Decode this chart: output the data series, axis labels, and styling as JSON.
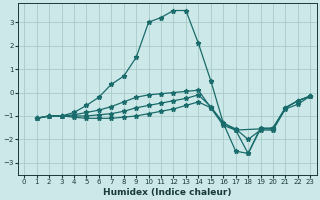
{
  "xlabel": "Humidex (Indice chaleur)",
  "bg_color": "#cce8e8",
  "grid_color": "#aacaca",
  "line_color": "#1a6b6b",
  "xlim": [
    -0.5,
    23.5
  ],
  "ylim": [
    -3.5,
    3.8
  ],
  "yticks": [
    -3,
    -2,
    -1,
    0,
    1,
    2,
    3
  ],
  "xticks": [
    0,
    1,
    2,
    3,
    4,
    5,
    6,
    7,
    8,
    9,
    10,
    11,
    12,
    13,
    14,
    15,
    16,
    17,
    18,
    19,
    20,
    21,
    22,
    23
  ],
  "series": [
    {
      "x": [
        1,
        2,
        3,
        4,
        5,
        6,
        7,
        8,
        9,
        10,
        11,
        12,
        13,
        14,
        15,
        16,
        17,
        18,
        19,
        20,
        21,
        22,
        23
      ],
      "y": [
        -1.1,
        -1.0,
        -1.0,
        -0.85,
        -0.55,
        -0.2,
        0.35,
        0.7,
        1.5,
        3.0,
        3.2,
        3.5,
        3.5,
        2.1,
        0.5,
        -1.3,
        -2.5,
        -2.6,
        -1.5,
        -1.55,
        -0.65,
        -0.35,
        -0.15
      ]
    },
    {
      "x": [
        1,
        2,
        3,
        4,
        5,
        6,
        7,
        8,
        9,
        10,
        11,
        12,
        13,
        14,
        15,
        16,
        17,
        19,
        20,
        21,
        22,
        23
      ],
      "y": [
        -1.1,
        -1.0,
        -1.0,
        -0.95,
        -0.85,
        -0.75,
        -0.6,
        -0.4,
        -0.2,
        -0.1,
        -0.05,
        0.0,
        0.05,
        0.1,
        -0.65,
        -1.4,
        -1.6,
        -1.55,
        -1.5,
        -0.65,
        -0.35,
        -0.15
      ]
    },
    {
      "x": [
        1,
        2,
        3,
        4,
        5,
        6,
        7,
        8,
        9,
        10,
        11,
        12,
        13,
        14,
        15,
        16,
        17,
        18,
        19,
        20,
        21,
        22,
        23
      ],
      "y": [
        -1.1,
        -1.0,
        -1.0,
        -1.0,
        -1.0,
        -0.95,
        -0.9,
        -0.8,
        -0.65,
        -0.55,
        -0.45,
        -0.35,
        -0.25,
        -0.1,
        -0.6,
        -1.3,
        -1.6,
        -2.6,
        -1.55,
        -1.55,
        -0.65,
        -0.35,
        -0.15
      ]
    },
    {
      "x": [
        1,
        2,
        3,
        4,
        5,
        6,
        7,
        8,
        9,
        10,
        11,
        12,
        13,
        14,
        15,
        16,
        17,
        18,
        19,
        20,
        21,
        22,
        23
      ],
      "y": [
        -1.1,
        -1.0,
        -1.0,
        -1.05,
        -1.1,
        -1.1,
        -1.1,
        -1.05,
        -1.0,
        -0.9,
        -0.8,
        -0.7,
        -0.55,
        -0.4,
        -0.65,
        -1.3,
        -1.55,
        -2.0,
        -1.6,
        -1.6,
        -0.7,
        -0.5,
        -0.15
      ]
    }
  ]
}
